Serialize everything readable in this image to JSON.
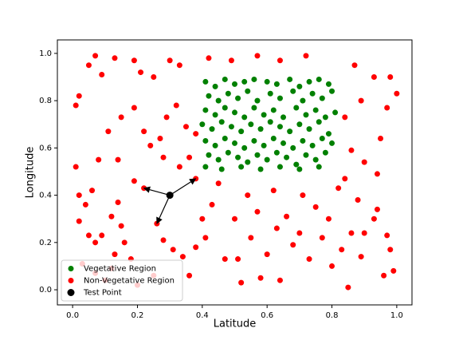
{
  "chart_data": {
    "type": "scatter",
    "x_label": "Latitude",
    "y_label": "Longitude",
    "xlim": [
      -0.047,
      1.047
    ],
    "ylim": [
      -0.064,
      1.057
    ],
    "xticks": [
      {
        "value": 0,
        "label": "0.0"
      },
      0.2,
      0.4,
      0.6,
      0.8,
      {
        "value": 1,
        "label": "1.0"
      }
    ],
    "yticks": [
      {
        "value": 0,
        "label": "0.0"
      },
      0.2,
      0.4,
      0.6,
      0.8,
      {
        "value": 1,
        "label": "1.0"
      }
    ],
    "legend": "lower left",
    "series": [
      {
        "name": "Vegetative Region",
        "color": "#008000",
        "size": 3.5,
        "x": [
          0.41,
          0.44,
          0.47,
          0.5,
          0.53,
          0.56,
          0.6,
          0.63,
          0.67,
          0.7,
          0.73,
          0.76,
          0.79,
          0.42,
          0.45,
          0.48,
          0.51,
          0.54,
          0.57,
          0.61,
          0.64,
          0.68,
          0.71,
          0.74,
          0.77,
          0.8,
          0.41,
          0.44,
          0.47,
          0.5,
          0.53,
          0.56,
          0.59,
          0.62,
          0.65,
          0.69,
          0.72,
          0.75,
          0.78,
          0.81,
          0.4,
          0.43,
          0.46,
          0.49,
          0.52,
          0.55,
          0.58,
          0.61,
          0.64,
          0.67,
          0.7,
          0.73,
          0.76,
          0.79,
          0.41,
          0.44,
          0.47,
          0.5,
          0.53,
          0.56,
          0.59,
          0.62,
          0.65,
          0.68,
          0.71,
          0.74,
          0.77,
          0.8,
          0.42,
          0.45,
          0.48,
          0.51,
          0.54,
          0.57,
          0.6,
          0.63,
          0.66,
          0.69,
          0.72,
          0.75,
          0.78,
          0.41,
          0.46,
          0.52,
          0.58,
          0.64,
          0.7,
          0.76
        ],
        "values": [
          0.88,
          0.86,
          0.89,
          0.87,
          0.88,
          0.89,
          0.88,
          0.87,
          0.89,
          0.86,
          0.88,
          0.89,
          0.87,
          0.82,
          0.8,
          0.83,
          0.81,
          0.84,
          0.8,
          0.83,
          0.81,
          0.84,
          0.8,
          0.83,
          0.81,
          0.84,
          0.76,
          0.74,
          0.77,
          0.75,
          0.73,
          0.77,
          0.74,
          0.76,
          0.73,
          0.77,
          0.74,
          0.76,
          0.73,
          0.75,
          0.7,
          0.68,
          0.71,
          0.69,
          0.67,
          0.7,
          0.68,
          0.71,
          0.69,
          0.67,
          0.7,
          0.68,
          0.71,
          0.66,
          0.63,
          0.61,
          0.64,
          0.62,
          0.6,
          0.63,
          0.61,
          0.64,
          0.62,
          0.6,
          0.63,
          0.61,
          0.64,
          0.62,
          0.57,
          0.55,
          0.58,
          0.56,
          0.54,
          0.57,
          0.55,
          0.58,
          0.56,
          0.53,
          0.57,
          0.55,
          0.58,
          0.52,
          0.51,
          0.52,
          0.51,
          0.52,
          0.51,
          0.52
        ]
      },
      {
        "name": "Non-Vegetative Region",
        "color": "#ff0000",
        "size": 3.5,
        "x": [
          0.01,
          0.02,
          0.05,
          0.07,
          0.09,
          0.13,
          0.19,
          0.21,
          0.25,
          0.3,
          0.33,
          0.42,
          0.49,
          0.57,
          0.64,
          0.72,
          0.87,
          0.93,
          0.98,
          1.0,
          0.97,
          0.89,
          0.84,
          0.11,
          0.15,
          0.19,
          0.22,
          0.24,
          0.27,
          0.29,
          0.32,
          0.35,
          0.38,
          0.36,
          0.33,
          0.28,
          0.01,
          0.02,
          0.04,
          0.02,
          0.06,
          0.07,
          0.05,
          0.09,
          0.12,
          0.14,
          0.15,
          0.16,
          0.13,
          0.12,
          0.03,
          0.07,
          0.19,
          0.22,
          0.26,
          0.28,
          0.31,
          0.34,
          0.36,
          0.38,
          0.38,
          0.4,
          0.41,
          0.43,
          0.45,
          0.47,
          0.5,
          0.51,
          0.52,
          0.54,
          0.55,
          0.57,
          0.58,
          0.6,
          0.62,
          0.63,
          0.64,
          0.66,
          0.68,
          0.7,
          0.71,
          0.73,
          0.75,
          0.77,
          0.79,
          0.8,
          0.82,
          0.83,
          0.85,
          0.86,
          0.88,
          0.89,
          0.9,
          0.93,
          0.94,
          0.96,
          0.97,
          0.98,
          0.99,
          0.94,
          0.95,
          0.9,
          0.86,
          0.84,
          0.1,
          0.18,
          0.2,
          0.25,
          0.08,
          0.14
        ],
        "values": [
          0.78,
          0.82,
          0.95,
          0.99,
          0.91,
          0.98,
          0.97,
          0.92,
          0.9,
          0.97,
          0.95,
          0.98,
          0.97,
          0.99,
          0.97,
          0.99,
          0.95,
          0.9,
          0.9,
          0.83,
          0.77,
          0.8,
          0.73,
          0.67,
          0.73,
          0.77,
          0.67,
          0.61,
          0.64,
          0.73,
          0.78,
          0.69,
          0.66,
          0.56,
          0.52,
          0.56,
          0.52,
          0.4,
          0.36,
          0.29,
          0.42,
          0.2,
          0.23,
          0.23,
          0.31,
          0.37,
          0.27,
          0.2,
          0.15,
          0.09,
          0.11,
          0.07,
          0.46,
          0.43,
          0.28,
          0.21,
          0.17,
          0.14,
          0.06,
          0.18,
          0.47,
          0.3,
          0.22,
          0.36,
          0.45,
          0.13,
          0.3,
          0.13,
          0.03,
          0.4,
          0.22,
          0.33,
          0.05,
          0.15,
          0.42,
          0.26,
          0.04,
          0.31,
          0.19,
          0.24,
          0.4,
          0.13,
          0.35,
          0.22,
          0.3,
          0.1,
          0.43,
          0.17,
          0.01,
          0.24,
          0.38,
          0.14,
          0.24,
          0.3,
          0.49,
          0.06,
          0.23,
          0.17,
          0.08,
          0.34,
          0.64,
          0.54,
          0.59,
          0.47,
          0.04,
          0.13,
          0.02,
          0.06,
          0.55,
          0.55
        ]
      },
      {
        "name": "Test Point",
        "color": "#000000",
        "size": 4.5,
        "x": [
          0.3
        ],
        "values": [
          0.4
        ]
      }
    ],
    "arrows": [
      {
        "x": [
          0.3,
          0.22
        ],
        "y": [
          0.4,
          0.43
        ]
      },
      {
        "x": [
          0.3,
          0.38
        ],
        "y": [
          0.4,
          0.47
        ]
      },
      {
        "x": [
          0.3,
          0.26
        ],
        "y": [
          0.4,
          0.28
        ]
      }
    ]
  }
}
